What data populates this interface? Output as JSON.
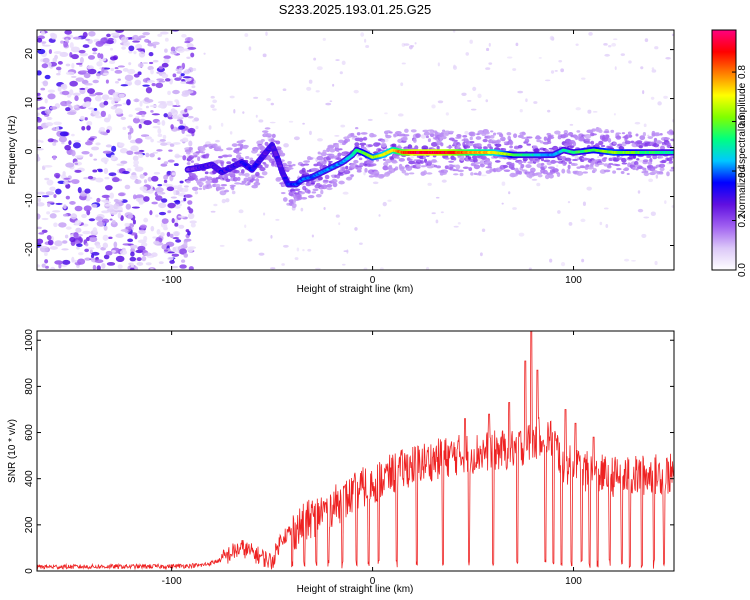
{
  "title": "S233.2025.193.01.25.G25",
  "chart_data": [
    {
      "type": "heatmap",
      "xlabel": "Height of straight line (km)",
      "ylabel": "Frequency (Hz)",
      "xlim": [
        -167,
        150
      ],
      "ylim": [
        -25,
        24
      ],
      "xticks": [
        -100,
        0,
        100
      ],
      "yticks": [
        -20,
        -10,
        0,
        10,
        20
      ],
      "colorbar": {
        "label": "Normalized spectral amplitude",
        "range": [
          0,
          0.97
        ],
        "ticks": [
          0.0,
          0.2,
          0.4,
          0.6,
          0.8
        ],
        "colormap": [
          "#ffffff",
          "#dcc8f8",
          "#a060f0",
          "#6010e0",
          "#0000ff",
          "#00c8ff",
          "#00ff80",
          "#80ff00",
          "#ffff00",
          "#ff8000",
          "#ff0000",
          "#ff0080"
        ]
      },
      "ridge": {
        "x": [
          -92,
          -85,
          -80,
          -75,
          -70,
          -65,
          -60,
          -55,
          -50,
          -47,
          -45,
          -42,
          -38,
          -35,
          -30,
          -25,
          -20,
          -15,
          -10,
          -8,
          -5,
          0,
          5,
          10,
          15,
          20,
          30,
          40,
          50,
          60,
          70,
          80,
          90,
          95,
          100,
          110,
          120,
          130,
          140,
          150
        ],
        "y": [
          -4.5,
          -4,
          -3.5,
          -5,
          -4,
          -3,
          -4.5,
          -2,
          0.5,
          -2.5,
          -5,
          -7.5,
          -7.5,
          -6.5,
          -6,
          -5,
          -4,
          -3,
          -1.5,
          -0.5,
          -1,
          -2,
          -1.5,
          -0.5,
          -1,
          -1,
          -1,
          -1,
          -1,
          -1,
          -1.5,
          -1.5,
          -1.5,
          -0.5,
          -1,
          -0.5,
          -1,
          -1,
          -1,
          -1
        ],
        "amplitude": [
          0.25,
          0.3,
          0.3,
          0.32,
          0.3,
          0.32,
          0.35,
          0.3,
          0.3,
          0.3,
          0.3,
          0.35,
          0.38,
          0.4,
          0.4,
          0.42,
          0.4,
          0.42,
          0.5,
          0.55,
          0.6,
          0.65,
          0.7,
          0.75,
          0.85,
          0.95,
          0.95,
          0.9,
          0.8,
          0.75,
          0.6,
          0.5,
          0.4,
          0.5,
          0.55,
          0.6,
          0.65,
          0.6,
          0.55,
          0.5
        ]
      }
    },
    {
      "type": "line",
      "xlabel": "Height of straight line (km)",
      "ylabel": "SNR (10 * v/v)",
      "xlim": [
        -167,
        150
      ],
      "ylim": [
        0,
        1040
      ],
      "xticks": [
        -100,
        0,
        100
      ],
      "yticks": [
        0,
        200,
        400,
        600,
        800,
        1000
      ],
      "color": "#ee2222",
      "envelope": {
        "x": [
          -167,
          -100,
          -85,
          -80,
          -75,
          -70,
          -65,
          -60,
          -55,
          -50,
          -45,
          -40,
          -35,
          -30,
          -25,
          -20,
          -15,
          -10,
          -5,
          0,
          5,
          10,
          15,
          20,
          25,
          30,
          40,
          50,
          60,
          70,
          80,
          85,
          90,
          95,
          100,
          110,
          120,
          130,
          140,
          150
        ],
        "y": [
          18,
          20,
          25,
          35,
          50,
          80,
          100,
          80,
          60,
          40,
          150,
          170,
          200,
          230,
          260,
          280,
          300,
          330,
          360,
          380,
          400,
          420,
          440,
          460,
          470,
          480,
          500,
          510,
          520,
          530,
          560,
          600,
          560,
          470,
          450,
          420,
          410,
          410,
          420,
          420
        ]
      },
      "spikes": [
        {
          "x": 76,
          "y": 910
        },
        {
          "x": 79,
          "y": 1040
        },
        {
          "x": 82,
          "y": 870
        },
        {
          "x": 96,
          "y": 700
        },
        {
          "x": 68,
          "y": 730
        },
        {
          "x": 58,
          "y": 680
        },
        {
          "x": 46,
          "y": 660
        },
        {
          "x": 101,
          "y": 640
        },
        {
          "x": 110,
          "y": 580
        }
      ],
      "dropouts_x": [
        -40,
        -34,
        -28,
        -22,
        -15,
        -8,
        -2,
        3,
        12,
        22,
        35,
        48,
        60,
        72,
        86,
        90,
        94,
        99,
        104,
        108,
        112,
        118,
        124,
        128,
        134,
        140,
        145
      ]
    }
  ]
}
